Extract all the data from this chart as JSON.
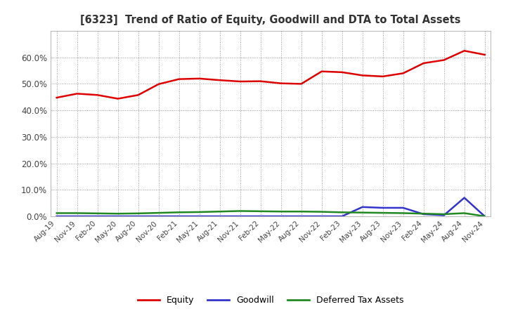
{
  "title": "[6323]  Trend of Ratio of Equity, Goodwill and DTA to Total Assets",
  "x_labels": [
    "Aug-19",
    "Nov-19",
    "Feb-20",
    "May-20",
    "Aug-20",
    "Nov-20",
    "Feb-21",
    "May-21",
    "Aug-21",
    "Nov-21",
    "Feb-22",
    "May-22",
    "Aug-22",
    "Nov-22",
    "Feb-23",
    "May-23",
    "Aug-23",
    "Nov-23",
    "Feb-24",
    "May-24",
    "Aug-24",
    "Nov-24"
  ],
  "equity": [
    44.8,
    46.3,
    45.8,
    44.4,
    45.8,
    49.9,
    51.8,
    52.0,
    51.4,
    50.9,
    51.0,
    50.2,
    50.0,
    54.7,
    54.4,
    53.2,
    52.8,
    54.0,
    57.8,
    59.0,
    62.5,
    61.0
  ],
  "goodwill": [
    0.0,
    0.0,
    0.0,
    0.0,
    0.0,
    0.0,
    0.0,
    0.0,
    0.0,
    0.0,
    0.0,
    0.0,
    0.0,
    0.0,
    0.0,
    3.5,
    3.2,
    3.2,
    0.8,
    0.4,
    7.0,
    0.0
  ],
  "dta": [
    1.2,
    1.2,
    1.1,
    1.0,
    1.1,
    1.3,
    1.5,
    1.6,
    1.8,
    2.0,
    1.9,
    1.8,
    1.8,
    1.7,
    1.5,
    1.4,
    1.3,
    1.2,
    1.0,
    0.8,
    1.2,
    0.0
  ],
  "equity_color": "#dd0000",
  "goodwill_color": "#3333cc",
  "dta_color": "#228822",
  "ylim": [
    0,
    70
  ],
  "yticks": [
    0,
    10,
    20,
    30,
    40,
    50,
    60
  ],
  "ytick_labels": [
    "0.0%",
    "10.0%",
    "20.0%",
    "30.0%",
    "40.0%",
    "50.0%",
    "60.0%"
  ],
  "bg_color": "#ffffff",
  "plot_bg_color": "#ffffff",
  "grid_color": "#999999",
  "legend_labels": [
    "Equity",
    "Goodwill",
    "Deferred Tax Assets"
  ],
  "title_color": "#333333"
}
